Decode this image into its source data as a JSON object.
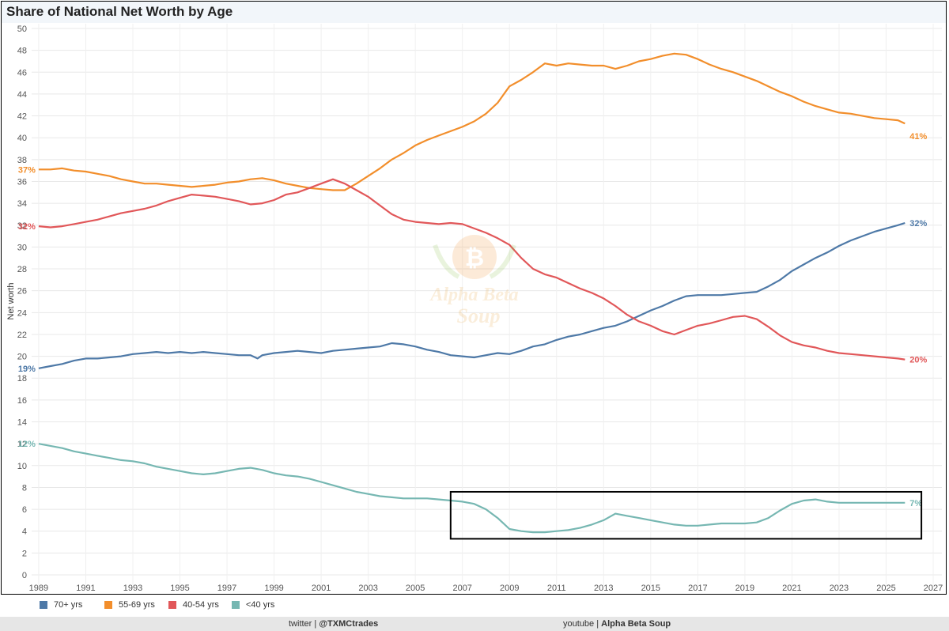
{
  "chart_data": {
    "type": "line",
    "title": "Share of National Net Worth by Age",
    "ylabel": "Net worth",
    "xlabel": "",
    "ylim": [
      0,
      50
    ],
    "xlim": [
      1988.7,
      2027
    ],
    "yticks": [
      0,
      2,
      4,
      6,
      8,
      10,
      12,
      14,
      16,
      18,
      20,
      22,
      24,
      26,
      28,
      30,
      32,
      34,
      36,
      38,
      40,
      42,
      44,
      46,
      48,
      50
    ],
    "xticks": [
      1989,
      1991,
      1993,
      1995,
      1997,
      1999,
      2001,
      2003,
      2005,
      2007,
      2009,
      2011,
      2013,
      2015,
      2017,
      2019,
      2021,
      2023,
      2025,
      2027
    ],
    "grid": true,
    "series": [
      {
        "name": "70+ yrs",
        "color": "#4e79a7",
        "end_label": "32%",
        "start_label": "19%",
        "x": [
          1989.0,
          1989.5,
          1990.0,
          1990.5,
          1991.0,
          1991.5,
          1992.0,
          1992.5,
          1993.0,
          1993.5,
          1994.0,
          1994.5,
          1995.0,
          1995.5,
          1996.0,
          1996.5,
          1997.0,
          1997.5,
          1998.0,
          1998.3,
          1998.5,
          1999.0,
          1999.5,
          2000.0,
          2000.5,
          2001.0,
          2001.5,
          2002.0,
          2002.5,
          2003.0,
          2003.5,
          2004.0,
          2004.5,
          2005.0,
          2005.5,
          2006.0,
          2006.5,
          2007.0,
          2007.5,
          2008.0,
          2008.5,
          2009.0,
          2009.5,
          2010.0,
          2010.5,
          2011.0,
          2011.5,
          2012.0,
          2012.5,
          2013.0,
          2013.5,
          2014.0,
          2014.5,
          2015.0,
          2015.5,
          2016.0,
          2016.5,
          2017.0,
          2017.5,
          2018.0,
          2018.5,
          2019.0,
          2019.5,
          2020.0,
          2020.5,
          2021.0,
          2021.5,
          2022.0,
          2022.5,
          2023.0,
          2023.5,
          2024.0,
          2024.5,
          2025.0,
          2025.5,
          2025.8
        ],
        "values": [
          18.9,
          19.1,
          19.3,
          19.6,
          19.8,
          19.8,
          19.9,
          20.0,
          20.2,
          20.3,
          20.4,
          20.3,
          20.4,
          20.3,
          20.4,
          20.3,
          20.2,
          20.1,
          20.1,
          19.8,
          20.1,
          20.3,
          20.4,
          20.5,
          20.4,
          20.3,
          20.5,
          20.6,
          20.7,
          20.8,
          20.9,
          21.2,
          21.1,
          20.9,
          20.6,
          20.4,
          20.1,
          20.0,
          19.9,
          20.1,
          20.3,
          20.2,
          20.5,
          20.9,
          21.1,
          21.5,
          21.8,
          22.0,
          22.3,
          22.6,
          22.8,
          23.2,
          23.7,
          24.2,
          24.6,
          25.1,
          25.5,
          25.6,
          25.6,
          25.6,
          25.7,
          25.8,
          25.9,
          26.4,
          27.0,
          27.8,
          28.4,
          29.0,
          29.5,
          30.1,
          30.6,
          31.0,
          31.4,
          31.7,
          32.0,
          32.2
        ]
      },
      {
        "name": "55-69 yrs",
        "color": "#f28e2b",
        "end_label": "41%",
        "start_label": "37%",
        "x": [
          1989.0,
          1989.5,
          1990.0,
          1990.5,
          1991.0,
          1991.5,
          1992.0,
          1992.5,
          1993.0,
          1993.5,
          1994.0,
          1994.5,
          1995.0,
          1995.5,
          1996.0,
          1996.5,
          1997.0,
          1997.5,
          1998.0,
          1998.5,
          1999.0,
          1999.5,
          2000.0,
          2000.5,
          2001.0,
          2001.5,
          2002.0,
          2002.5,
          2003.0,
          2003.5,
          2004.0,
          2004.5,
          2005.0,
          2005.5,
          2006.0,
          2006.5,
          2007.0,
          2007.5,
          2008.0,
          2008.5,
          2009.0,
          2009.5,
          2010.0,
          2010.5,
          2011.0,
          2011.5,
          2012.0,
          2012.5,
          2013.0,
          2013.5,
          2014.0,
          2014.5,
          2015.0,
          2015.5,
          2016.0,
          2016.5,
          2017.0,
          2017.5,
          2018.0,
          2018.5,
          2019.0,
          2019.5,
          2020.0,
          2020.5,
          2021.0,
          2021.5,
          2022.0,
          2022.5,
          2023.0,
          2023.5,
          2024.0,
          2024.5,
          2025.0,
          2025.5,
          2025.8
        ],
        "values": [
          37.1,
          37.1,
          37.2,
          37.0,
          36.9,
          36.7,
          36.5,
          36.2,
          36.0,
          35.8,
          35.8,
          35.7,
          35.6,
          35.5,
          35.6,
          35.7,
          35.9,
          36.0,
          36.2,
          36.3,
          36.1,
          35.8,
          35.6,
          35.4,
          35.3,
          35.2,
          35.2,
          35.8,
          36.5,
          37.2,
          38.0,
          38.6,
          39.3,
          39.8,
          40.2,
          40.6,
          41.0,
          41.5,
          42.2,
          43.2,
          44.7,
          45.3,
          46.0,
          46.8,
          46.6,
          46.8,
          46.7,
          46.6,
          46.6,
          46.3,
          46.6,
          47.0,
          47.2,
          47.5,
          47.7,
          47.6,
          47.2,
          46.7,
          46.3,
          46.0,
          45.6,
          45.2,
          44.7,
          44.2,
          43.8,
          43.3,
          42.9,
          42.6,
          42.3,
          42.2,
          42.0,
          41.8,
          41.7,
          41.6,
          41.3
        ]
      },
      {
        "name": "40-54 yrs",
        "color": "#e15759",
        "end_label": "20%",
        "start_label": "32%",
        "x": [
          1989.0,
          1989.5,
          1990.0,
          1990.5,
          1991.0,
          1991.5,
          1992.0,
          1992.5,
          1993.0,
          1993.5,
          1994.0,
          1994.5,
          1995.0,
          1995.5,
          1996.0,
          1996.5,
          1997.0,
          1997.5,
          1998.0,
          1998.5,
          1999.0,
          1999.5,
          2000.0,
          2000.5,
          2001.0,
          2001.5,
          2002.0,
          2002.5,
          2003.0,
          2003.5,
          2004.0,
          2004.5,
          2005.0,
          2005.5,
          2006.0,
          2006.5,
          2007.0,
          2007.5,
          2008.0,
          2008.5,
          2009.0,
          2009.5,
          2010.0,
          2010.5,
          2011.0,
          2011.5,
          2012.0,
          2012.5,
          2013.0,
          2013.5,
          2014.0,
          2014.5,
          2015.0,
          2015.5,
          2016.0,
          2016.5,
          2017.0,
          2017.5,
          2018.0,
          2018.5,
          2019.0,
          2019.5,
          2020.0,
          2020.5,
          2021.0,
          2021.5,
          2022.0,
          2022.5,
          2023.0,
          2023.5,
          2024.0,
          2024.5,
          2025.0,
          2025.5,
          2025.8
        ],
        "values": [
          31.9,
          31.8,
          31.9,
          32.1,
          32.3,
          32.5,
          32.8,
          33.1,
          33.3,
          33.5,
          33.8,
          34.2,
          34.5,
          34.8,
          34.7,
          34.6,
          34.4,
          34.2,
          33.9,
          34.0,
          34.3,
          34.8,
          35.0,
          35.4,
          35.8,
          36.2,
          35.8,
          35.2,
          34.6,
          33.8,
          33.0,
          32.5,
          32.3,
          32.2,
          32.1,
          32.2,
          32.1,
          31.7,
          31.3,
          30.8,
          30.2,
          29.0,
          28.0,
          27.5,
          27.2,
          26.7,
          26.2,
          25.8,
          25.3,
          24.6,
          23.8,
          23.2,
          22.8,
          22.3,
          22.0,
          22.4,
          22.8,
          23.0,
          23.3,
          23.6,
          23.7,
          23.4,
          22.7,
          21.9,
          21.3,
          21.0,
          20.8,
          20.5,
          20.3,
          20.2,
          20.1,
          20.0,
          19.9,
          19.8,
          19.7
        ]
      },
      {
        "name": "<40 yrs",
        "color": "#76b7b2",
        "end_label": "7%",
        "start_label": "12%",
        "x": [
          1989.0,
          1989.5,
          1990.0,
          1990.5,
          1991.0,
          1991.5,
          1992.0,
          1992.5,
          1993.0,
          1993.5,
          1994.0,
          1994.5,
          1995.0,
          1995.5,
          1996.0,
          1996.5,
          1997.0,
          1997.5,
          1998.0,
          1998.5,
          1999.0,
          1999.5,
          2000.0,
          2000.5,
          2001.0,
          2001.5,
          2002.0,
          2002.5,
          2003.0,
          2003.5,
          2004.0,
          2004.5,
          2005.0,
          2005.5,
          2006.0,
          2006.5,
          2007.0,
          2007.5,
          2008.0,
          2008.5,
          2009.0,
          2009.5,
          2010.0,
          2010.5,
          2011.0,
          2011.5,
          2012.0,
          2012.5,
          2013.0,
          2013.5,
          2014.0,
          2014.5,
          2015.0,
          2015.5,
          2016.0,
          2016.5,
          2017.0,
          2017.5,
          2018.0,
          2018.5,
          2019.0,
          2019.5,
          2020.0,
          2020.5,
          2021.0,
          2021.5,
          2022.0,
          2022.5,
          2023.0,
          2023.5,
          2024.0,
          2024.5,
          2025.0,
          2025.5,
          2025.8
        ],
        "values": [
          12.0,
          11.8,
          11.6,
          11.3,
          11.1,
          10.9,
          10.7,
          10.5,
          10.4,
          10.2,
          9.9,
          9.7,
          9.5,
          9.3,
          9.2,
          9.3,
          9.5,
          9.7,
          9.8,
          9.6,
          9.3,
          9.1,
          9.0,
          8.8,
          8.5,
          8.2,
          7.9,
          7.6,
          7.4,
          7.2,
          7.1,
          7.0,
          7.0,
          7.0,
          6.9,
          6.8,
          6.7,
          6.5,
          6.0,
          5.2,
          4.2,
          4.0,
          3.9,
          3.9,
          4.0,
          4.1,
          4.3,
          4.6,
          5.0,
          5.6,
          5.4,
          5.2,
          5.0,
          4.8,
          4.6,
          4.5,
          4.5,
          4.6,
          4.7,
          4.7,
          4.7,
          4.8,
          5.2,
          5.9,
          6.5,
          6.8,
          6.9,
          6.7,
          6.6,
          6.6,
          6.6,
          6.6,
          6.6,
          6.6,
          6.6
        ]
      }
    ],
    "highlight_box": {
      "x0": 2006.5,
      "x1": 2026.5,
      "y0": 3.3,
      "y1": 7.6
    }
  },
  "legend": [
    {
      "label": "70+ yrs",
      "color": "#4e79a7"
    },
    {
      "label": "55-69 yrs",
      "color": "#f28e2b"
    },
    {
      "label": "40-54 yrs",
      "color": "#e15759"
    },
    {
      "label": "<40 yrs",
      "color": "#76b7b2"
    }
  ],
  "footer": {
    "twitter_prefix": "twitter | ",
    "twitter_handle": "@TXMCtrades",
    "youtube_prefix": "youtube | ",
    "youtube_name": "Alpha Beta Soup"
  },
  "watermark": {
    "line1": "Alpha Beta",
    "line2": "Soup"
  }
}
